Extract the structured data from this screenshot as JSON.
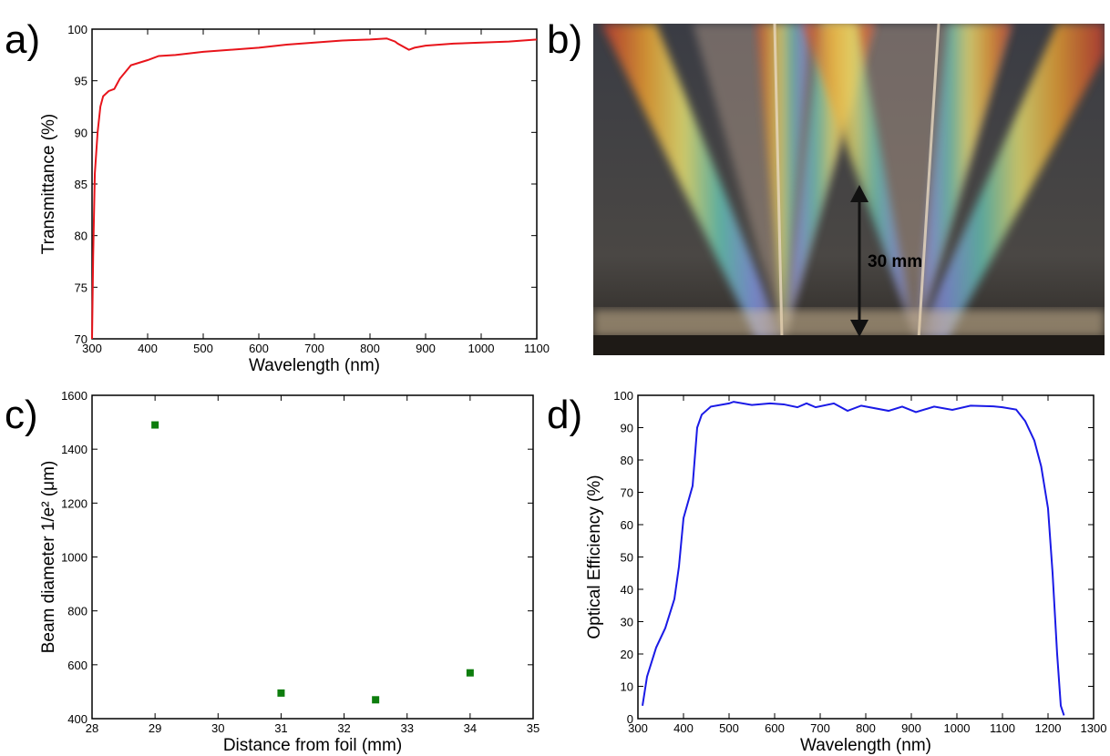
{
  "chart_data": [
    {
      "type": "line",
      "panel_label": "a)",
      "x_label": "Wavelength (nm)",
      "y_label": "Transmittance (%)",
      "color": "#e8141b",
      "x": [
        300,
        302,
        305,
        310,
        315,
        320,
        330,
        340,
        350,
        370,
        400,
        420,
        450,
        500,
        550,
        600,
        650,
        700,
        750,
        800,
        830,
        845,
        850,
        870,
        880,
        900,
        950,
        1000,
        1050,
        1100
      ],
      "values": [
        70,
        78,
        86,
        90,
        92.5,
        93.5,
        94,
        94.2,
        95.2,
        96.5,
        97,
        97.4,
        97.5,
        97.8,
        98,
        98.2,
        98.5,
        98.7,
        98.9,
        99,
        99.1,
        98.8,
        98.6,
        98,
        98.2,
        98.4,
        98.6,
        98.7,
        98.8,
        99
      ],
      "xlim": [
        300,
        1100
      ],
      "ylim": [
        70,
        100
      ],
      "xticks": [
        300,
        400,
        500,
        600,
        700,
        800,
        900,
        1000,
        1100
      ],
      "yticks": [
        70,
        75,
        80,
        85,
        90,
        95,
        100
      ]
    },
    {
      "type": "scatter",
      "panel_label": "c)",
      "x_label": "Distance from foil (mm)",
      "y_label": "Beam diameter 1/e² (μm)",
      "color": "#0d7d0d",
      "x": [
        29,
        31,
        32.5,
        34
      ],
      "values": [
        1490,
        495,
        470,
        570
      ],
      "xlim": [
        28,
        35
      ],
      "ylim": [
        400,
        1600
      ],
      "xticks": [
        28,
        29,
        30,
        31,
        32,
        33,
        34,
        35
      ],
      "yticks": [
        400,
        600,
        800,
        1000,
        1200,
        1400,
        1600
      ]
    },
    {
      "type": "line",
      "panel_label": "d)",
      "x_label": "Wavelength (nm)",
      "y_label": "Optical Efficiency (%)",
      "color": "#1a1ae6",
      "x": [
        310,
        320,
        340,
        360,
        380,
        390,
        400,
        420,
        430,
        440,
        460,
        500,
        510,
        550,
        590,
        620,
        650,
        670,
        690,
        730,
        760,
        790,
        850,
        880,
        910,
        950,
        990,
        1030,
        1080,
        1100,
        1130,
        1150,
        1170,
        1185,
        1200,
        1210,
        1220,
        1228,
        1235
      ],
      "values": [
        4,
        13,
        22,
        28,
        37,
        47,
        62,
        72,
        90,
        94,
        96.5,
        97.5,
        98,
        97,
        97.5,
        97.2,
        96.3,
        97.5,
        96.3,
        97.5,
        95.2,
        96.8,
        95.2,
        96.5,
        94.8,
        96.5,
        95.5,
        96.8,
        96.6,
        96.3,
        95.6,
        92,
        86,
        78,
        65,
        45,
        20,
        4,
        1
      ],
      "xlim": [
        300,
        1300
      ],
      "ylim": [
        0,
        100
      ],
      "xticks": [
        300,
        400,
        500,
        600,
        700,
        800,
        900,
        1000,
        1100,
        1200,
        1300
      ],
      "yticks": [
        0,
        10,
        20,
        30,
        40,
        50,
        60,
        70,
        80,
        90,
        100
      ]
    }
  ],
  "photo": {
    "panel_label": "b)",
    "annotation": "30 mm"
  }
}
